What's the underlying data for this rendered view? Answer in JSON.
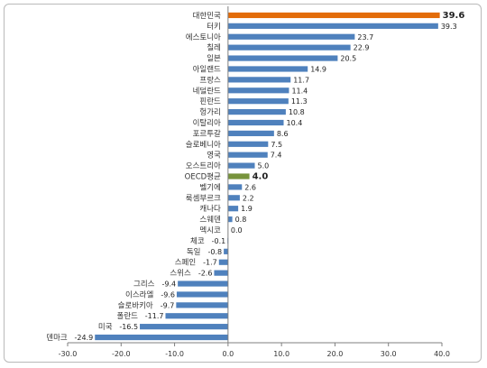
{
  "chart_data": {
    "type": "bar",
    "orientation": "horizontal",
    "title": "",
    "xlabel": "",
    "ylabel": "",
    "xlim": [
      -30,
      40
    ],
    "xticks": [
      -30,
      -20,
      -10,
      0,
      10,
      20,
      30,
      40
    ],
    "xtick_labels": [
      "-30.0",
      "-20.0",
      "-10.0",
      "0.0",
      "10.0",
      "20.0",
      "30.0",
      "40.0"
    ],
    "grid": false,
    "legend": "none",
    "categories": [
      "대한민국",
      "터키",
      "에스토니아",
      "칠레",
      "일본",
      "아일랜드",
      "프랑스",
      "네덜란드",
      "핀란드",
      "헝가리",
      "이탈리아",
      "포르투갈",
      "슬로베니아",
      "영국",
      "오스트리아",
      "OECD평균",
      "벨기에",
      "룩셈부르크",
      "캐나다",
      "스웨덴",
      "멕시코",
      "체코",
      "독일",
      "스페인",
      "스위스",
      "그리스",
      "이스라엘",
      "슬로바키아",
      "폴란드",
      "미국",
      "덴마크"
    ],
    "values": [
      39.6,
      39.3,
      23.7,
      22.9,
      20.5,
      14.9,
      11.7,
      11.4,
      11.3,
      10.8,
      10.4,
      8.6,
      7.5,
      7.4,
      5.0,
      4.0,
      2.6,
      2.2,
      1.9,
      0.8,
      0.0,
      -0.1,
      -0.8,
      -1.7,
      -2.6,
      -9.4,
      -9.6,
      -9.7,
      -11.7,
      -16.5,
      -24.9
    ],
    "labels": [
      "39.6",
      "39.3",
      "23.7",
      "22.9",
      "20.5",
      "14.9",
      "11.7",
      "11.4",
      "11.3",
      "10.8",
      "10.4",
      "8.6",
      "7.5",
      "7.4",
      "5.0",
      "4.0",
      "2.6",
      "2.2",
      "1.9",
      "0.8",
      "0.0",
      "-0.1",
      "-0.8",
      "-1.7",
      "-2.6",
      "-9.4",
      "-9.6",
      "-9.7",
      "-11.7",
      "-16.5",
      "-24.9"
    ],
    "colors": {
      "default": "#4f81bd",
      "highlight_korea": "#e36c09",
      "highlight_oecd": "#77933c"
    },
    "highlights": {
      "대한민국": "highlight_korea",
      "OECD평균": "highlight_oecd"
    }
  }
}
